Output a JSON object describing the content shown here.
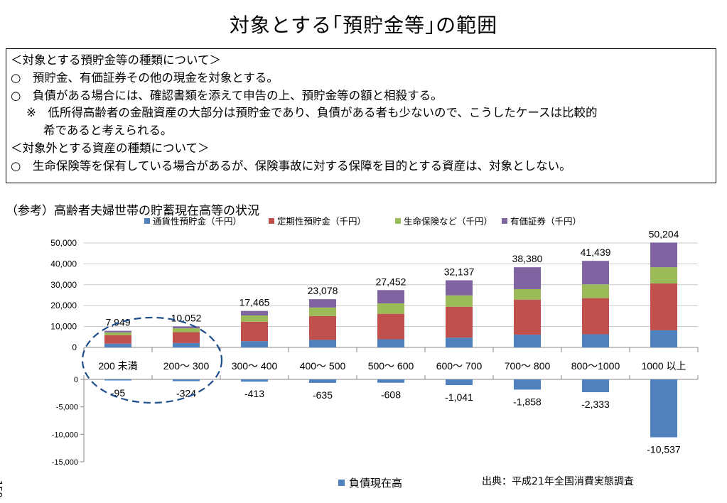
{
  "page": {
    "title": "対象とする｢預貯金等｣の範囲",
    "box_lines": [
      "＜対象とする預貯金等の種類について＞",
      "○　預貯金、有価証券その他の現金を対象とする。",
      "○　負債がある場合には、確認書類を添えて申告の上、預貯金等の額と相殺する。",
      "※　低所得高齢者の金融資産の大部分は預貯金であり、負債がある者も少ないので、こうしたケースは比較的",
      "希であると考えられる。",
      "＜対象外とする資産の種類について＞",
      "○　生命保険等を保有している場合があるが、保険事故に対する保障を目的とする資産は、対象としない。"
    ],
    "ref_label": "（参考）高齢者夫婦世帯の貯蓄現在高等の状況",
    "source": "出典：平成21年全国消費実態調査",
    "page_number": "159"
  },
  "chart_data": [
    {
      "type": "bar",
      "stacked": true,
      "categories": [
        "200 未満",
        "200～ 300",
        "300～ 400",
        "400～ 500",
        "500～ 600",
        "600～ 700",
        "700～ 800",
        "800～1000",
        "1000 以上"
      ],
      "series": [
        {
          "name": "通貨性預貯金（千円）",
          "color": "#4f81bd",
          "values": [
            1800,
            2100,
            3000,
            3600,
            3900,
            4700,
            6100,
            6300,
            8200
          ]
        },
        {
          "name": "定期性預貯金（千円）",
          "color": "#c0504d",
          "values": [
            4100,
            5200,
            9300,
            11400,
            12200,
            14800,
            16800,
            17300,
            22400
          ]
        },
        {
          "name": "生命保険など（千円）",
          "color": "#9bbb59",
          "values": [
            1300,
            1900,
            3000,
            4100,
            5000,
            5400,
            5000,
            6600,
            7800
          ]
        },
        {
          "name": "有価証券（千円）",
          "color": "#8064a2",
          "values": [
            749,
            852,
            2165,
            3978,
            6352,
            7237,
            10480,
            11239,
            11804
          ]
        }
      ],
      "totals": [
        7949,
        10052,
        17465,
        23078,
        27452,
        32137,
        38380,
        41439,
        50204
      ],
      "total_labels": [
        "7,949",
        "10,052",
        "17,465",
        "23,078",
        "27,452",
        "32,137",
        "38,380",
        "41,439",
        "50,204"
      ],
      "ylim": [
        0,
        50000
      ],
      "yticks": [
        "0",
        "10,000",
        "20,000",
        "30,000",
        "40,000",
        "50,000"
      ],
      "legend_position": "top",
      "grid": true,
      "annotation": "dashed ellipse around first two categories"
    },
    {
      "type": "bar",
      "categories": [
        "200 未満",
        "200～ 300",
        "300～ 400",
        "400～ 500",
        "500～ 600",
        "600～ 700",
        "700～ 800",
        "800～1000",
        "1000 以上"
      ],
      "series": [
        {
          "name": "負債現在高",
          "color": "#4f81bd",
          "values": [
            -95,
            -324,
            -413,
            -635,
            -608,
            -1041,
            -1858,
            -2333,
            -10537
          ]
        }
      ],
      "value_labels": [
        "-95",
        "-324",
        "-413",
        "-635",
        "-608",
        "-1,041",
        "-1,858",
        "-2,333",
        "-10,537"
      ],
      "ylim": [
        -15000,
        0
      ],
      "yticks": [
        "0",
        "-5,000",
        "-10,000",
        "-15,000"
      ],
      "legend_position": "bottom",
      "grid": false
    }
  ]
}
